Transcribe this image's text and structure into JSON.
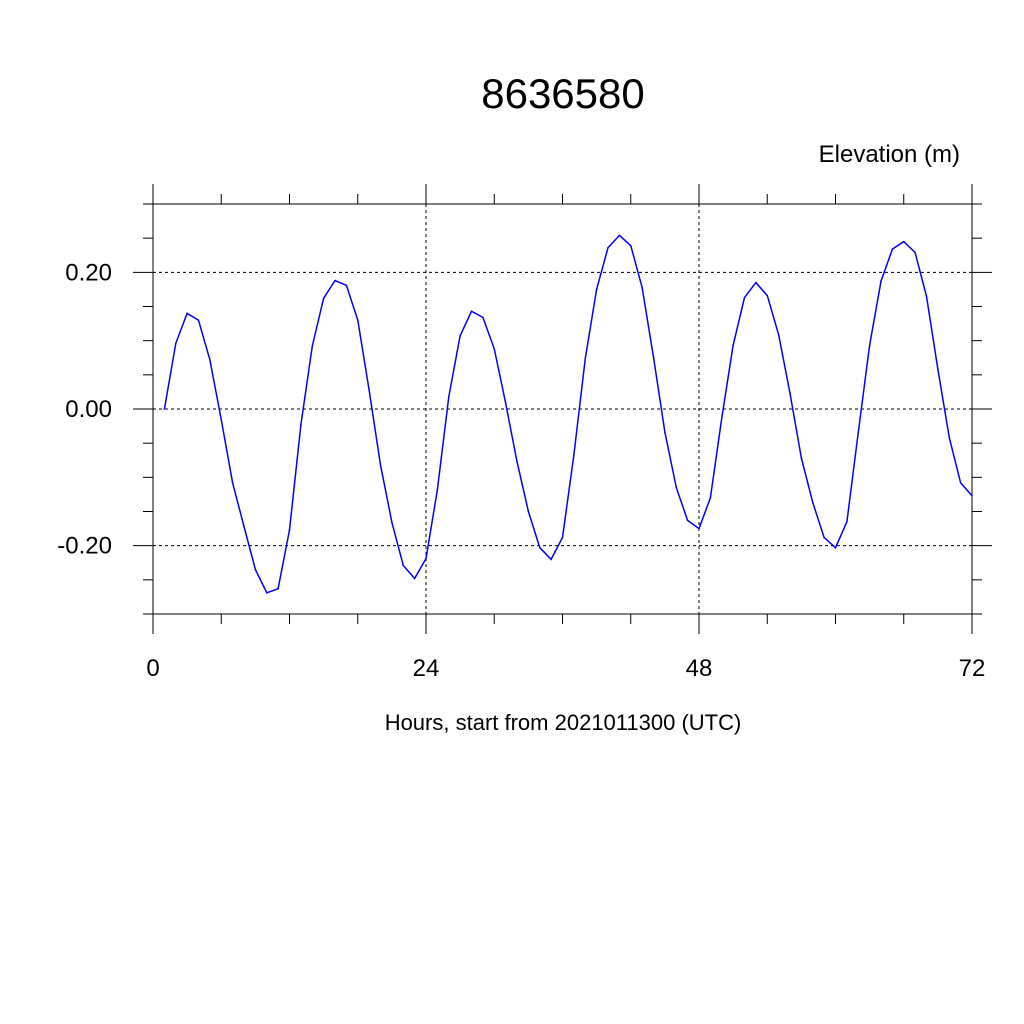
{
  "chart_data": {
    "type": "line",
    "title": "8636580",
    "ylabel": "Elevation (m)",
    "xlabel": "Hours, start from 2021011300 (UTC)",
    "xlim": [
      0,
      72
    ],
    "ylim": [
      -0.3,
      0.3
    ],
    "x_ticks": [
      0,
      24,
      48,
      72
    ],
    "x_tick_labels": [
      "0",
      "24",
      "48",
      "72"
    ],
    "y_ticks": [
      -0.2,
      0.0,
      0.2
    ],
    "y_tick_labels": [
      "-0.20",
      "0.00",
      "0.20"
    ],
    "grid": true,
    "grid_style": "dashed",
    "series": [
      {
        "color": "#0000ff",
        "x": [
          1,
          2,
          3,
          4,
          5,
          6,
          7,
          8,
          9,
          10,
          11,
          12,
          13,
          14,
          15,
          16,
          17,
          18,
          19,
          20,
          21,
          22,
          23,
          24,
          25,
          26,
          27,
          28,
          29,
          30,
          31,
          32,
          33,
          34,
          35,
          36,
          37,
          38,
          39,
          40,
          41,
          42,
          43,
          44,
          45,
          46,
          47,
          48,
          49,
          50,
          51,
          52,
          53,
          54,
          55,
          56,
          57,
          58,
          59,
          60,
          61,
          62,
          63,
          64,
          65,
          66,
          67,
          68,
          69,
          70,
          71,
          72
        ],
        "y": [
          0.0,
          0.096,
          0.14,
          0.13,
          0.072,
          -0.016,
          -0.108,
          -0.172,
          -0.235,
          -0.269,
          -0.263,
          -0.177,
          -0.023,
          0.092,
          0.162,
          0.188,
          0.181,
          0.13,
          0.028,
          -0.082,
          -0.166,
          -0.229,
          -0.248,
          -0.219,
          -0.118,
          0.018,
          0.107,
          0.143,
          0.134,
          0.088,
          0.009,
          -0.077,
          -0.15,
          -0.203,
          -0.22,
          -0.188,
          -0.067,
          0.074,
          0.175,
          0.236,
          0.254,
          0.239,
          0.178,
          0.076,
          -0.034,
          -0.115,
          -0.163,
          -0.175,
          -0.13,
          -0.013,
          0.093,
          0.163,
          0.185,
          0.166,
          0.109,
          0.023,
          -0.072,
          -0.137,
          -0.188,
          -0.203,
          -0.165,
          -0.034,
          0.093,
          0.187,
          0.234,
          0.245,
          0.229,
          0.165,
          0.058,
          -0.042,
          -0.108,
          -0.127
        ]
      }
    ]
  }
}
